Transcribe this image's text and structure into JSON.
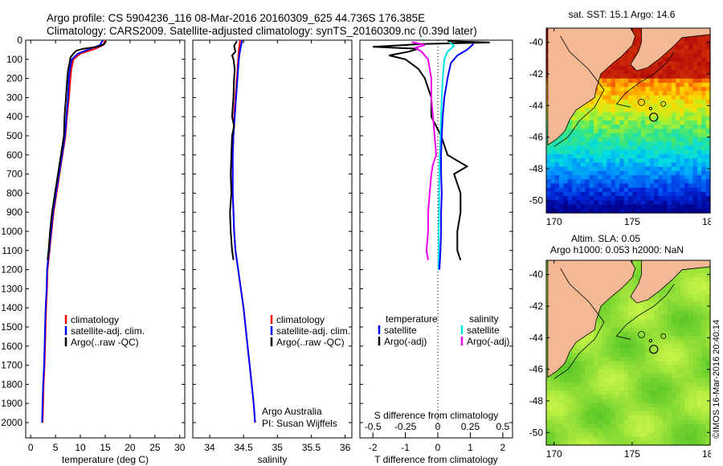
{
  "header": {
    "line1": "Argo profile: CS 5904236_116 08-Mar-2016 20160309_625 44.736S 176.385E",
    "line2": "Climatology: CARS2009. Satellite-adjusted climatology: synTS_20160309.nc (0.39d later)"
  },
  "colors": {
    "climatology": "#ff0000",
    "satellite": "#0000ff",
    "argo": "#000000",
    "sal_satellite": "#00e5e5",
    "sal_argo": "#ee00ee"
  },
  "chart_data": [
    {
      "type": "line",
      "xlabel": "temperature (deg C)",
      "xlim": [
        -1,
        31
      ],
      "xticks": [
        0,
        5,
        10,
        15,
        20,
        25,
        30
      ],
      "ylim": [
        0,
        2080
      ],
      "yticks": [
        0,
        100,
        200,
        300,
        400,
        500,
        600,
        700,
        800,
        900,
        1000,
        1100,
        1200,
        1300,
        1400,
        1500,
        1600,
        1700,
        1800,
        1900,
        2000
      ],
      "legend": [
        "climatology",
        "satellite-adj. clim.",
        "Argo(..raw -QC)"
      ],
      "series": [
        {
          "name": "climatology",
          "points": [
            [
              15.0,
              0
            ],
            [
              14.6,
              25
            ],
            [
              13.0,
              45
            ],
            [
              10.0,
              70
            ],
            [
              8.6,
              100
            ],
            [
              8.2,
              150
            ],
            [
              8.0,
              200
            ],
            [
              7.7,
              300
            ],
            [
              7.3,
              400
            ],
            [
              7.0,
              500
            ],
            [
              6.4,
              600
            ],
            [
              5.8,
              700
            ],
            [
              5.2,
              800
            ],
            [
              4.6,
              900
            ],
            [
              4.2,
              1000
            ],
            [
              3.8,
              1100
            ],
            [
              3.4,
              1200
            ],
            [
              3.3,
              1300
            ],
            [
              3.1,
              1400
            ],
            [
              3.0,
              1500
            ],
            [
              2.9,
              1600
            ],
            [
              2.8,
              1700
            ],
            [
              2.6,
              1800
            ],
            [
              2.5,
              1900
            ],
            [
              2.4,
              2000
            ]
          ]
        },
        {
          "name": "satellite-adj. clim.",
          "points": [
            [
              14.5,
              0
            ],
            [
              14.0,
              25
            ],
            [
              12.0,
              45
            ],
            [
              9.5,
              70
            ],
            [
              8.3,
              100
            ],
            [
              7.9,
              150
            ],
            [
              7.7,
              200
            ],
            [
              7.5,
              300
            ],
            [
              7.2,
              400
            ],
            [
              6.9,
              500
            ],
            [
              6.3,
              600
            ],
            [
              5.7,
              700
            ],
            [
              5.1,
              800
            ],
            [
              4.5,
              900
            ],
            [
              4.1,
              1000
            ],
            [
              3.7,
              1100
            ],
            [
              3.3,
              1200
            ],
            [
              3.2,
              1300
            ],
            [
              3.0,
              1400
            ],
            [
              2.9,
              1500
            ],
            [
              2.8,
              1600
            ],
            [
              2.7,
              1700
            ],
            [
              2.5,
              1800
            ],
            [
              2.4,
              1900
            ],
            [
              2.3,
              2000
            ]
          ]
        },
        {
          "name": "Argo(..raw -QC)",
          "points": [
            [
              15.2,
              5
            ],
            [
              14.8,
              20
            ],
            [
              13.5,
              35
            ],
            [
              10.5,
              45
            ],
            [
              9.2,
              55
            ],
            [
              8.6,
              70
            ],
            [
              8.0,
              90
            ],
            [
              7.8,
              120
            ],
            [
              7.5,
              160
            ],
            [
              7.3,
              220
            ],
            [
              7.1,
              300
            ],
            [
              6.8,
              400
            ],
            [
              6.7,
              500
            ],
            [
              6.1,
              600
            ],
            [
              5.5,
              700
            ],
            [
              4.9,
              800
            ],
            [
              4.3,
              900
            ],
            [
              3.9,
              1000
            ],
            [
              3.6,
              1100
            ],
            [
              3.4,
              1150
            ]
          ]
        }
      ]
    },
    {
      "type": "line",
      "xlabel": "salinity",
      "xlim": [
        33.75,
        36.1
      ],
      "xticks": [
        34,
        34.5,
        35,
        35.5,
        36
      ],
      "ylim": [
        0,
        2080
      ],
      "legend": [
        "climatology",
        "satellite-adj. clim.",
        "Argo(..raw -QC)"
      ],
      "annotation": [
        "Argo Australia",
        "PI: Susan Wijffels"
      ],
      "series": [
        {
          "name": "climatology",
          "points": [
            [
              34.45,
              0
            ],
            [
              34.43,
              50
            ],
            [
              34.42,
              100
            ],
            [
              34.4,
              200
            ],
            [
              34.38,
              300
            ],
            [
              34.36,
              400
            ],
            [
              34.35,
              500
            ],
            [
              34.34,
              600
            ],
            [
              34.34,
              700
            ],
            [
              34.34,
              800
            ],
            [
              34.35,
              900
            ],
            [
              34.36,
              1000
            ],
            [
              34.38,
              1100
            ],
            [
              34.42,
              1200
            ],
            [
              34.46,
              1300
            ],
            [
              34.5,
              1400
            ],
            [
              34.53,
              1500
            ],
            [
              34.56,
              1600
            ],
            [
              34.59,
              1700
            ],
            [
              34.62,
              1800
            ],
            [
              34.65,
              1900
            ],
            [
              34.67,
              2000
            ]
          ]
        },
        {
          "name": "satellite-adj. clim.",
          "points": [
            [
              34.48,
              0
            ],
            [
              34.45,
              50
            ],
            [
              34.43,
              100
            ],
            [
              34.41,
              200
            ],
            [
              34.39,
              300
            ],
            [
              34.37,
              400
            ],
            [
              34.35,
              500
            ],
            [
              34.34,
              600
            ],
            [
              34.34,
              700
            ],
            [
              34.34,
              800
            ],
            [
              34.35,
              900
            ],
            [
              34.36,
              1000
            ],
            [
              34.38,
              1100
            ],
            [
              34.42,
              1200
            ],
            [
              34.46,
              1300
            ],
            [
              34.5,
              1400
            ],
            [
              34.53,
              1500
            ],
            [
              34.56,
              1600
            ],
            [
              34.59,
              1700
            ],
            [
              34.62,
              1800
            ],
            [
              34.65,
              1900
            ],
            [
              34.67,
              2000
            ]
          ]
        },
        {
          "name": "Argo(..raw -QC)",
          "points": [
            [
              34.4,
              5
            ],
            [
              34.36,
              30
            ],
            [
              34.38,
              60
            ],
            [
              34.33,
              80
            ],
            [
              34.35,
              100
            ],
            [
              34.37,
              150
            ],
            [
              34.36,
              200
            ],
            [
              34.35,
              300
            ],
            [
              34.33,
              400
            ],
            [
              34.36,
              450
            ],
            [
              34.33,
              500
            ],
            [
              34.32,
              600
            ],
            [
              34.31,
              700
            ],
            [
              34.32,
              800
            ],
            [
              34.3,
              900
            ],
            [
              34.31,
              1000
            ],
            [
              34.33,
              1100
            ],
            [
              34.35,
              1150
            ]
          ]
        }
      ]
    },
    {
      "type": "line",
      "xlabel": "T difference from climatology",
      "xlabel_top": "S difference from climatology",
      "xlim": [
        -2.4,
        2.3
      ],
      "xticks": [
        -2,
        -1,
        0,
        1,
        2
      ],
      "top_tick_labels": [
        "-0.5",
        "-0.25",
        "0",
        "0.25",
        "0.5"
      ],
      "ylim": [
        0,
        2080
      ],
      "legend": {
        "temperature_title": "temperature",
        "salinity_title": "salinity",
        "temperature": [
          "satellite",
          "Argo(-adj)"
        ],
        "salinity": [
          "satellite",
          "Argo(-adj)"
        ]
      },
      "series": [
        {
          "name": "temperature satellite",
          "points": [
            [
              1.1,
              20
            ],
            [
              0.9,
              50
            ],
            [
              0.6,
              80
            ],
            [
              0.4,
              120
            ],
            [
              0.3,
              200
            ],
            [
              0.2,
              300
            ],
            [
              0.15,
              400
            ],
            [
              0.12,
              500
            ],
            [
              0.1,
              600
            ],
            [
              0.1,
              700
            ],
            [
              0.12,
              800
            ],
            [
              0.1,
              900
            ],
            [
              0.1,
              1000
            ],
            [
              0.08,
              1100
            ],
            [
              0.05,
              1200
            ]
          ]
        },
        {
          "name": "temperature Argo(-adj)",
          "points": [
            [
              0.3,
              5
            ],
            [
              1.6,
              12
            ],
            [
              -0.5,
              20
            ],
            [
              -2.0,
              35
            ],
            [
              -0.6,
              45
            ],
            [
              -0.9,
              60
            ],
            [
              -1.5,
              80
            ],
            [
              -1.0,
              100
            ],
            [
              -0.6,
              150
            ],
            [
              -0.4,
              200
            ],
            [
              -0.2,
              300
            ],
            [
              -0.2,
              400
            ],
            [
              0.1,
              500
            ],
            [
              0.3,
              600
            ],
            [
              0.9,
              660
            ],
            [
              0.5,
              700
            ],
            [
              0.7,
              800
            ],
            [
              0.7,
              900
            ],
            [
              0.6,
              1000
            ],
            [
              0.6,
              1100
            ],
            [
              0.7,
              1150
            ]
          ]
        },
        {
          "name": "salinity satellite",
          "points": [
            [
              0.35,
              10
            ],
            [
              0.5,
              30
            ],
            [
              0.3,
              60
            ],
            [
              0.2,
              100
            ],
            [
              0.15,
              200
            ],
            [
              0.12,
              300
            ],
            [
              0.1,
              400
            ],
            [
              0.08,
              500
            ],
            [
              0.06,
              600
            ],
            [
              0.05,
              700
            ],
            [
              0.04,
              800
            ],
            [
              0.04,
              900
            ],
            [
              0.03,
              1000
            ],
            [
              0.03,
              1100
            ],
            [
              0.02,
              1200
            ]
          ]
        },
        {
          "name": "salinity Argo(-adj)",
          "points": [
            [
              -0.8,
              10
            ],
            [
              -0.4,
              25
            ],
            [
              -0.7,
              40
            ],
            [
              -0.5,
              60
            ],
            [
              -0.3,
              100
            ],
            [
              -0.2,
              200
            ],
            [
              -0.2,
              300
            ],
            [
              -0.15,
              400
            ],
            [
              -0.1,
              500
            ],
            [
              -0.05,
              600
            ],
            [
              -0.15,
              650
            ],
            [
              -0.2,
              700
            ],
            [
              -0.25,
              800
            ],
            [
              -0.3,
              900
            ],
            [
              -0.3,
              1000
            ],
            [
              -0.35,
              1100
            ],
            [
              -0.3,
              1150
            ]
          ]
        }
      ]
    },
    {
      "type": "heatmap",
      "title": "sat. SST: 15.1 Argo: 14.6",
      "xlim": [
        169.5,
        180
      ],
      "xticks": [
        170,
        175,
        180
      ],
      "ylim": [
        -50.8,
        -39.1
      ],
      "yticks": [
        -40,
        -42,
        -44,
        -46,
        -48,
        -50
      ]
    },
    {
      "type": "heatmap",
      "title_line1": "Altim. SLA: 0.05",
      "title_line2": "Argo h1000: 0.053 h2000: NaN",
      "xlim": [
        169.5,
        180
      ],
      "xticks": [
        170,
        175,
        180
      ],
      "ylim": [
        -50.8,
        -39.1
      ],
      "yticks": [
        -40,
        -42,
        -44,
        -46,
        -48,
        -50
      ]
    }
  ],
  "sidebar_stamp": "©IMOS 16-Mar-2016 20:40:14",
  "argo_position": {
    "lon": 176.385,
    "lat": -44.736
  }
}
